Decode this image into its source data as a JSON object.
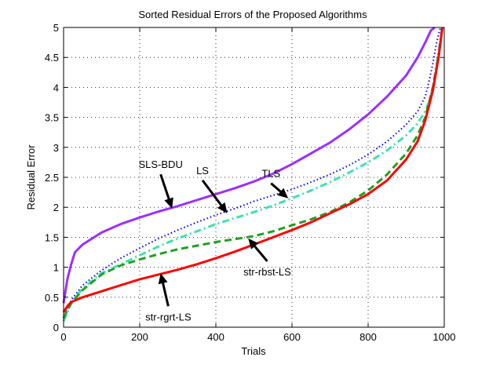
{
  "chart_data": {
    "type": "line",
    "title": "Sorted Residual Errors of the Proposed Algorithms",
    "xlabel": "Trials",
    "ylabel": "Residual Error",
    "xlim": [
      0,
      1000
    ],
    "ylim": [
      0,
      5
    ],
    "xticks": [
      "0",
      "200",
      "400",
      "600",
      "800",
      "1000"
    ],
    "yticks": [
      "0",
      "0.5",
      "1",
      "1.5",
      "2",
      "2.5",
      "3",
      "3.5",
      "4",
      "4.5",
      "5"
    ],
    "grid": true,
    "legend": "none",
    "series": [
      {
        "name": "SLS-BDU",
        "color": "#9b30ff",
        "style": "solid",
        "x": [
          0,
          10,
          20,
          30,
          50,
          80,
          100,
          150,
          200,
          250,
          300,
          350,
          400,
          450,
          500,
          550,
          600,
          650,
          700,
          750,
          800,
          850,
          900,
          930,
          950,
          965,
          975
        ],
        "y": [
          0.4,
          0.8,
          1.05,
          1.25,
          1.38,
          1.5,
          1.58,
          1.72,
          1.83,
          1.93,
          2.02,
          2.12,
          2.22,
          2.32,
          2.43,
          2.56,
          2.72,
          2.9,
          3.08,
          3.3,
          3.55,
          3.85,
          4.2,
          4.5,
          4.75,
          4.95,
          5.0
        ]
      },
      {
        "name": "LS",
        "color": "#0000ff",
        "style": "dotted",
        "x": [
          0,
          10,
          20,
          50,
          100,
          150,
          200,
          250,
          300,
          350,
          400,
          450,
          500,
          550,
          600,
          650,
          700,
          750,
          800,
          850,
          900,
          930,
          950,
          960,
          970,
          980,
          990
        ],
        "y": [
          0.15,
          0.3,
          0.45,
          0.7,
          0.95,
          1.15,
          1.32,
          1.48,
          1.62,
          1.75,
          1.87,
          1.98,
          2.1,
          2.2,
          2.3,
          2.42,
          2.55,
          2.7,
          2.88,
          3.1,
          3.38,
          3.6,
          3.85,
          4.1,
          4.4,
          4.75,
          5.0
        ]
      },
      {
        "name": "TLS",
        "color": "#40e0b0",
        "style": "dash-dot",
        "x": [
          0,
          10,
          20,
          50,
          100,
          150,
          200,
          250,
          300,
          350,
          400,
          450,
          500,
          550,
          600,
          650,
          700,
          750,
          800,
          850,
          900,
          930,
          950,
          965,
          975,
          985,
          995
        ],
        "y": [
          0.1,
          0.25,
          0.4,
          0.65,
          0.9,
          1.05,
          1.2,
          1.35,
          1.48,
          1.6,
          1.72,
          1.82,
          1.92,
          2.03,
          2.15,
          2.28,
          2.42,
          2.58,
          2.75,
          2.95,
          3.2,
          3.4,
          3.6,
          3.85,
          4.2,
          4.6,
          5.0
        ]
      },
      {
        "name": "str-rbst-LS",
        "color": "#22a022",
        "style": "dashed",
        "x": [
          0,
          10,
          20,
          50,
          100,
          150,
          200,
          250,
          300,
          350,
          400,
          450,
          500,
          550,
          600,
          650,
          700,
          750,
          800,
          850,
          900,
          930,
          950,
          970,
          985,
          995
        ],
        "y": [
          0.15,
          0.28,
          0.4,
          0.62,
          0.88,
          1.03,
          1.13,
          1.22,
          1.3,
          1.36,
          1.42,
          1.47,
          1.52,
          1.6,
          1.7,
          1.8,
          1.92,
          2.08,
          2.28,
          2.55,
          2.9,
          3.2,
          3.5,
          4.0,
          4.5,
          5.0
        ]
      },
      {
        "name": "str-rgrt-LS",
        "color": "#ff0000",
        "style": "solid",
        "x": [
          0,
          10,
          20,
          50,
          100,
          150,
          200,
          250,
          300,
          350,
          400,
          450,
          500,
          550,
          600,
          650,
          700,
          750,
          800,
          850,
          900,
          930,
          950,
          970,
          985,
          995
        ],
        "y": [
          0.25,
          0.35,
          0.42,
          0.5,
          0.6,
          0.7,
          0.8,
          0.88,
          0.96,
          1.05,
          1.15,
          1.26,
          1.38,
          1.5,
          1.62,
          1.75,
          1.9,
          2.05,
          2.22,
          2.45,
          2.8,
          3.1,
          3.45,
          3.95,
          4.5,
          5.0
        ]
      }
    ],
    "annotations": [
      {
        "text": "SLS-BDU",
        "tail": [
          255,
          2.55
        ],
        "head": [
          285,
          1.98
        ]
      },
      {
        "text": "LS",
        "tail": [
          365,
          2.45
        ],
        "head": [
          430,
          1.9
        ]
      },
      {
        "text": "TLS",
        "tail": [
          545,
          2.4
        ],
        "head": [
          590,
          2.15
        ]
      },
      {
        "text": "str-rbst-LS",
        "tail": [
          535,
          1.1
        ],
        "head": [
          485,
          1.48
        ]
      },
      {
        "text": "str-rgrt-LS",
        "tail": [
          275,
          0.35
        ],
        "head": [
          255,
          0.9
        ]
      }
    ]
  }
}
